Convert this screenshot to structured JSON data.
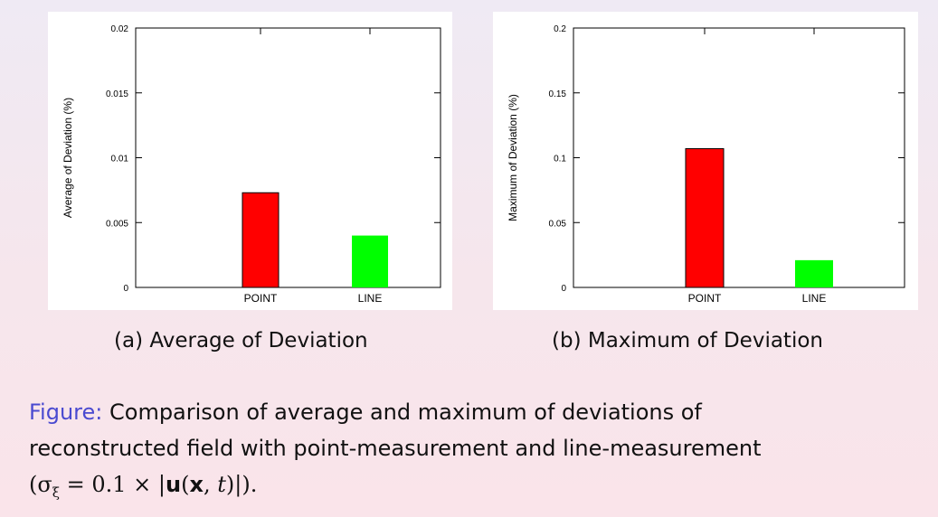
{
  "chart_data": [
    {
      "type": "bar",
      "categories": [
        "POINT",
        "LINE"
      ],
      "values": [
        0.0073,
        0.004
      ],
      "bar_colors": [
        "#ff0000",
        "#00ff00"
      ],
      "title": "",
      "xlabel": "",
      "ylabel": "Average of Deviation (%)",
      "ylim": [
        0,
        0.02
      ],
      "yticks": [
        "0",
        "0.005",
        "0.01",
        "0.015",
        "0.02"
      ],
      "subcaption": "(a) Average of Deviation",
      "grid": false
    },
    {
      "type": "bar",
      "categories": [
        "POINT",
        "LINE"
      ],
      "values": [
        0.107,
        0.021
      ],
      "bar_colors": [
        "#ff0000",
        "#00ff00"
      ],
      "title": "",
      "xlabel": "",
      "ylabel": "Maximum of Deviation (%)",
      "ylim": [
        0,
        0.2
      ],
      "yticks": [
        "0",
        "0.05",
        "0.1",
        "0.15",
        "0.2"
      ],
      "subcaption": "(b) Maximum of Deviation",
      "grid": false
    }
  ],
  "caption": {
    "prefix": "Figure:",
    "text_line1": " Comparison of average and maximum of deviations of",
    "text_line2": "reconstructed field with point-measurement and line-measurement",
    "math": {
      "open": "(σ",
      "sub": "ξ",
      "mid": " = 0.1 × |",
      "bold_u": "u",
      "args_open": "(",
      "bold_x": "x",
      "comma": ", ",
      "t": "t",
      "close": ")|)."
    }
  }
}
